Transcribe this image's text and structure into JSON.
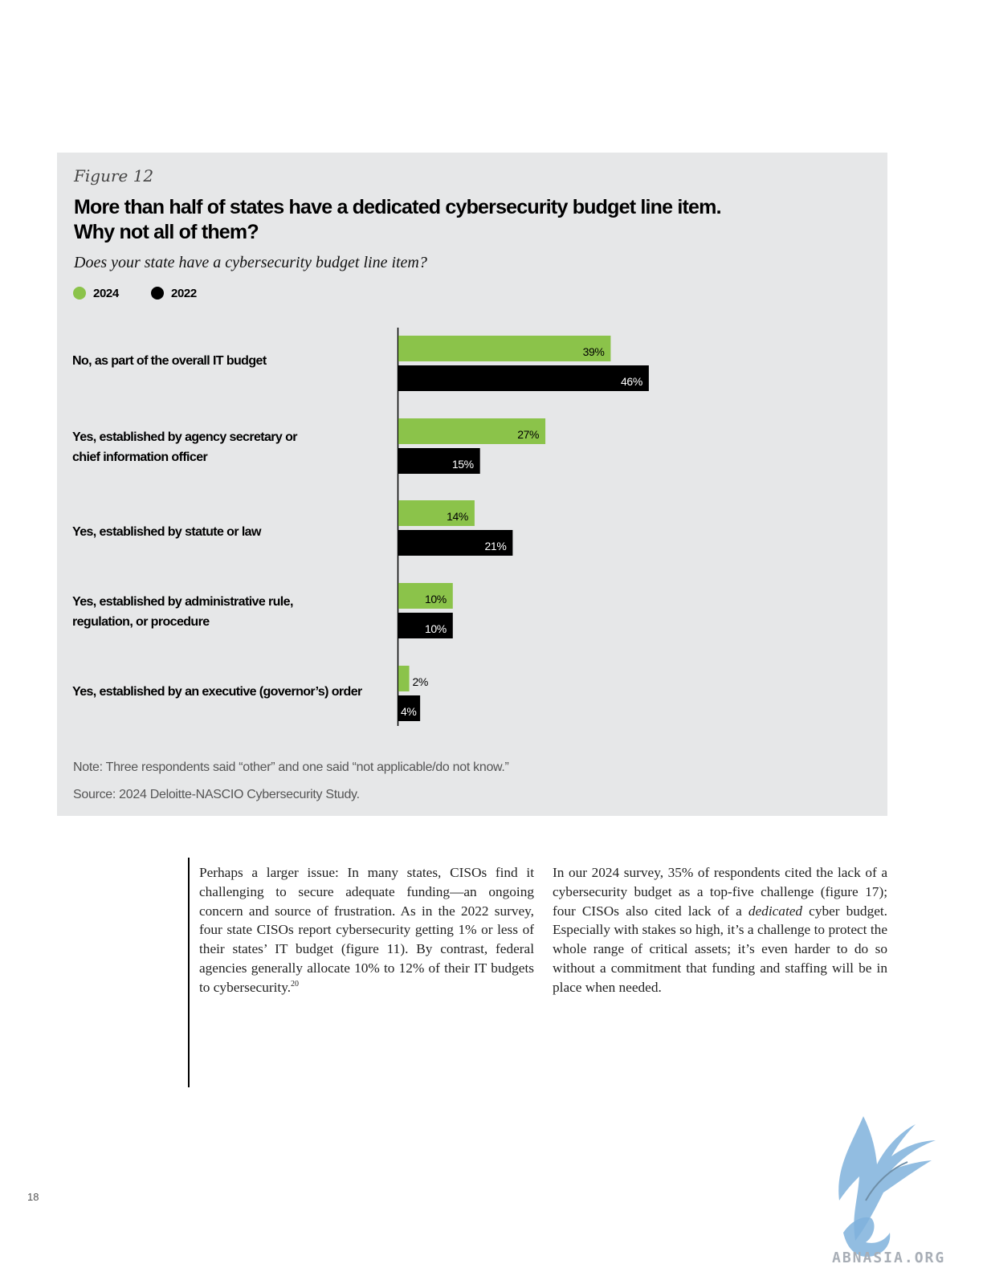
{
  "figure": {
    "label": "Figure 12",
    "title_line1": "More than half of states have a dedicated cybersecurity budget line item.",
    "title_line2": "Why not all of them?",
    "subtitle": "Does your state have a cybersecurity budget line item?",
    "note": "Note: Three respondents said “other” and one said “not applicable/do not know.”",
    "source": "Source: 2024 Deloitte-NASCIO Cybersecurity Study."
  },
  "chart_data": {
    "type": "bar",
    "orientation": "horizontal",
    "title": "More than half of states have a dedicated cybersecurity budget line item. Why not all of them?",
    "subtitle": "Does your state have a cybersecurity budget line item?",
    "categories": [
      "No, as part of the overall IT budget",
      "Yes, established by agency secretary or chief information officer",
      "Yes, established by statute or law",
      "Yes, established by administrative rule, regulation, or procedure",
      "Yes, established by an executive (governor’s) order"
    ],
    "category_lines": [
      [
        "No, as part of the overall IT budget"
      ],
      [
        "Yes, established by agency secretary or",
        "chief information officer"
      ],
      [
        "Yes, established by statute or law"
      ],
      [
        "Yes, established by administrative rule,",
        "regulation, or procedure"
      ],
      [
        "Yes, established by an executive (governor’s) order"
      ]
    ],
    "series": [
      {
        "name": "2024",
        "color": "#8bc34a",
        "values": [
          39,
          27,
          14,
          10,
          2
        ],
        "labels": [
          "39%",
          "27%",
          "14%",
          "10%",
          "2%"
        ]
      },
      {
        "name": "2022",
        "color": "#000000",
        "values": [
          46,
          15,
          21,
          10,
          4
        ],
        "labels": [
          "46%",
          "15%",
          "21%",
          "10%",
          "4%"
        ]
      }
    ],
    "unit": "%",
    "legend": "top-left",
    "grid": false
  },
  "body": {
    "col1_text": "Perhaps a larger issue: In many states, CISOs find it challenging to secure adequate funding—an ongoing concern and source of frustration. As in the 2022 survey, four state CISOs report cybersecurity getting 1% or less of their states’ IT budget (figure 11). By contrast, federal agencies generally allocate 10% to 12% of their IT budgets to cybersecurity.",
    "col1_footnote": "20",
    "col2_text_a": "In our 2024 survey, 35% of respondents cited the lack of a cybersecurity budget as a top-five challenge (figure 17); four CISOs also cited lack of a ",
    "col2_italic": "dedicated",
    "col2_text_b": " cyber budget. Especially with stakes so high, it’s a challenge to protect the whole range of critical assets; it’s even harder to do so without a commitment that funding and staffing will be in place when needed."
  },
  "page_number": "18",
  "watermark_text": "ABNASIA.ORG"
}
